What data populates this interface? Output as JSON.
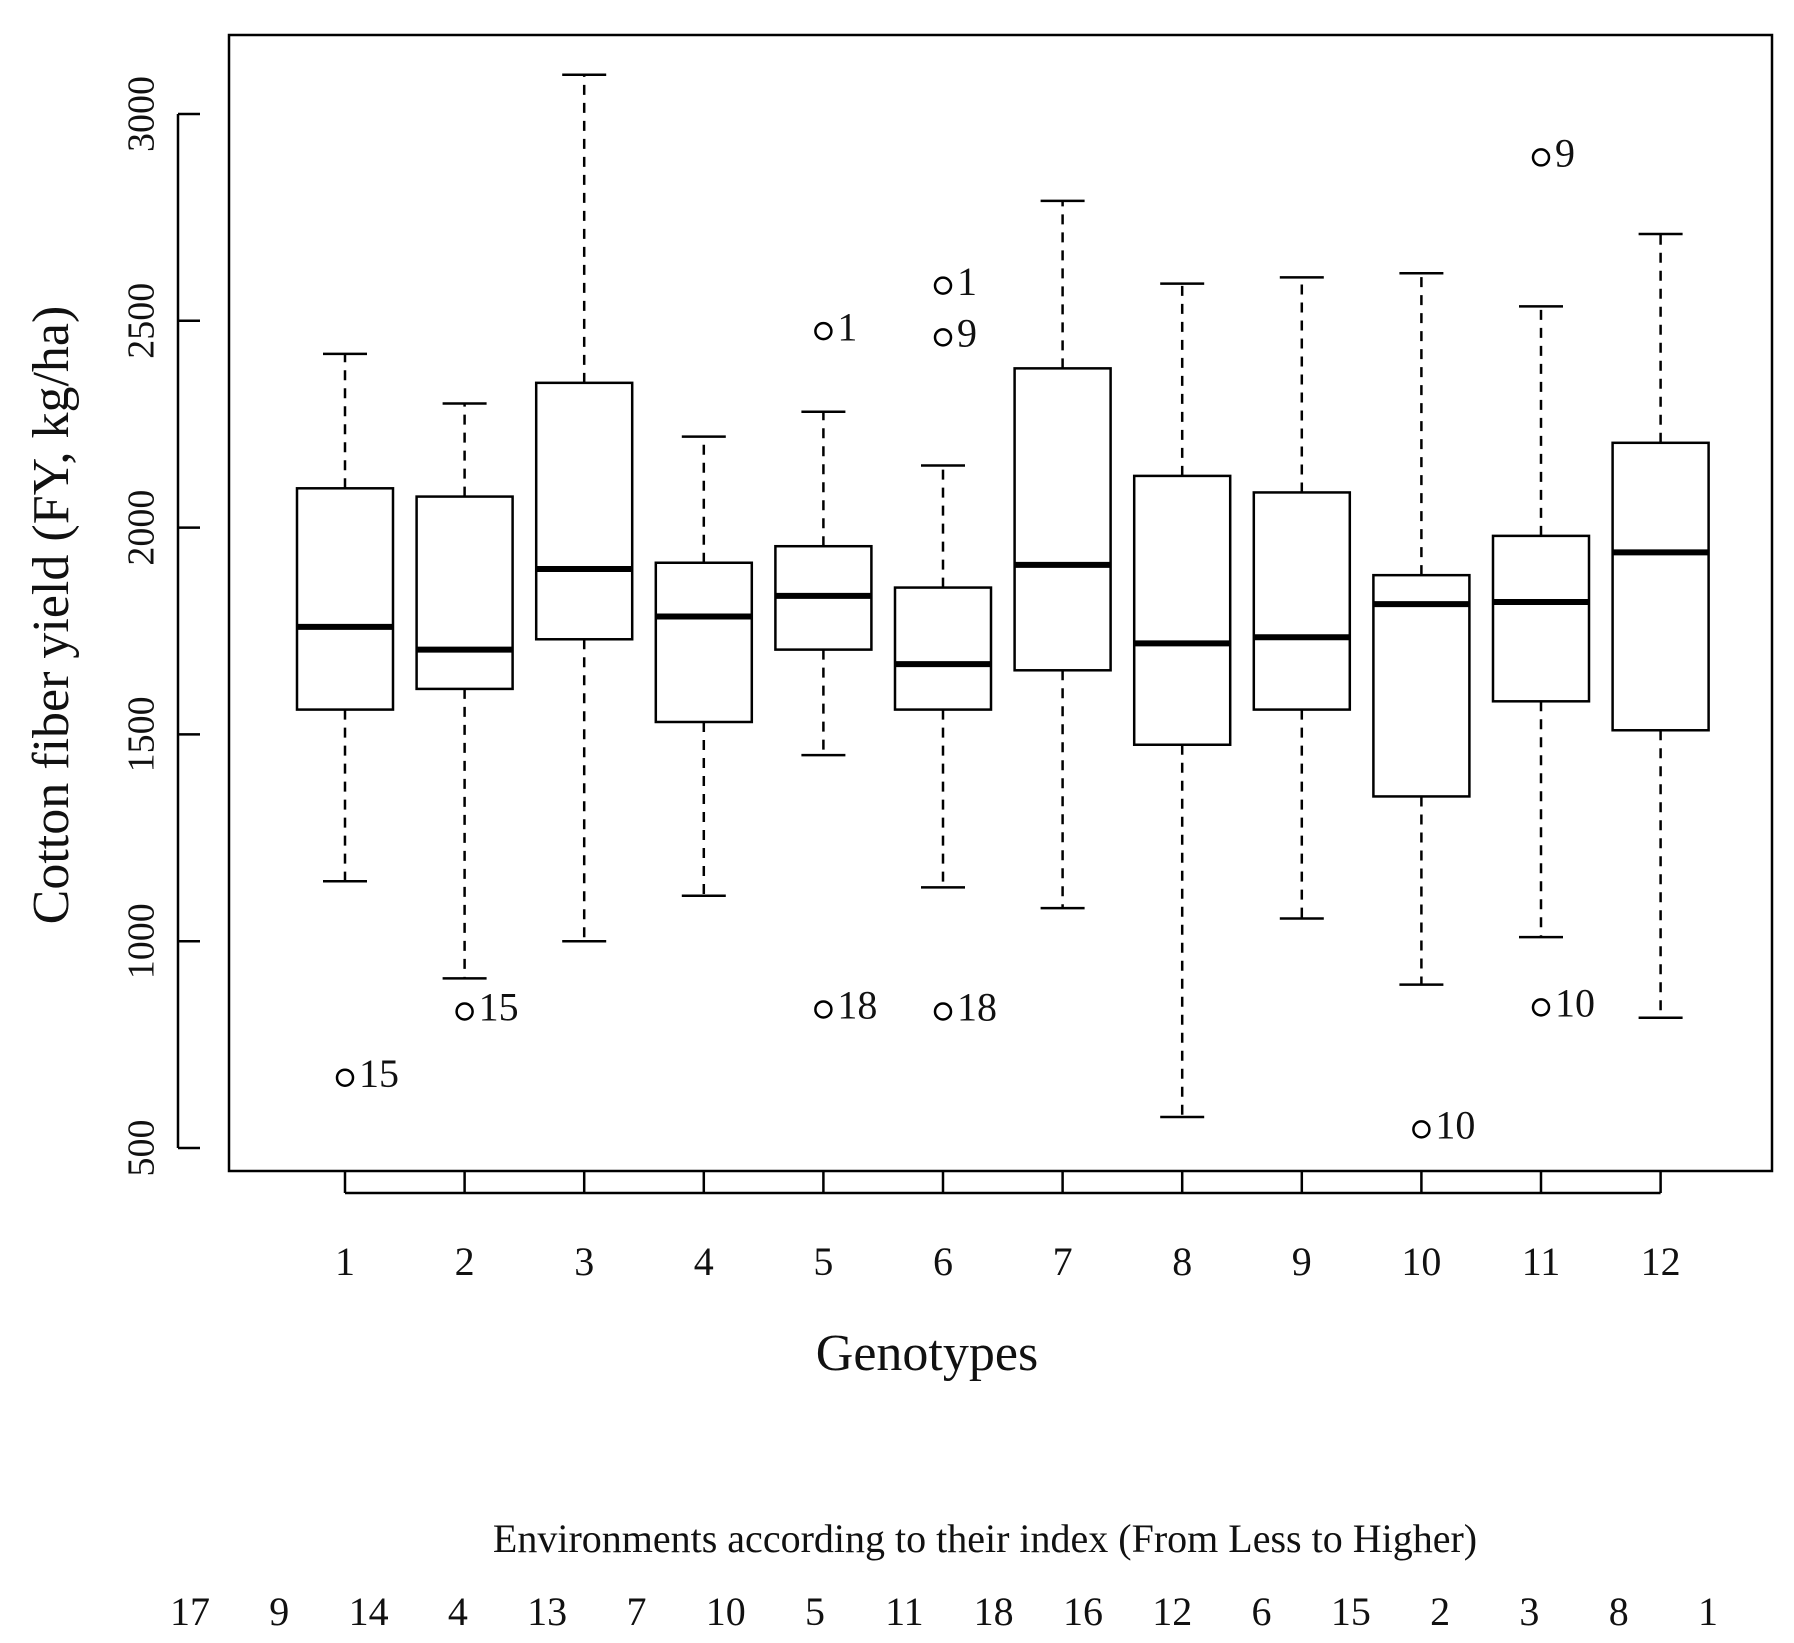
{
  "chart_data": {
    "type": "boxplot",
    "title": "",
    "xlabel": "Genotypes",
    "ylabel": "Cotton fiber yield (FY, kg/ha)",
    "ylim": [
      440,
      3190
    ],
    "yticks": [
      500,
      1000,
      1500,
      2000,
      2500,
      3000
    ],
    "categories": [
      "1",
      "2",
      "3",
      "4",
      "5",
      "6",
      "7",
      "8",
      "9",
      "10",
      "11",
      "12"
    ],
    "boxes": [
      {
        "genotype": "1",
        "whisker_low": 1145,
        "q1": 1560,
        "median": 1760,
        "q3": 2095,
        "whisker_high": 2420,
        "outliers": [
          {
            "value": 670,
            "label": "15"
          }
        ]
      },
      {
        "genotype": "2",
        "whisker_low": 910,
        "q1": 1610,
        "median": 1705,
        "q3": 2075,
        "whisker_high": 2300,
        "outliers": [
          {
            "value": 830,
            "label": "15"
          }
        ]
      },
      {
        "genotype": "3",
        "whisker_low": 1000,
        "q1": 1730,
        "median": 1900,
        "q3": 2350,
        "whisker_high": 3095,
        "outliers": []
      },
      {
        "genotype": "4",
        "whisker_low": 1110,
        "q1": 1530,
        "median": 1785,
        "q3": 1915,
        "whisker_high": 2220,
        "outliers": []
      },
      {
        "genotype": "5",
        "whisker_low": 1450,
        "q1": 1705,
        "median": 1835,
        "q3": 1955,
        "whisker_high": 2280,
        "outliers": [
          {
            "value": 2475,
            "label": "1"
          },
          {
            "value": 835,
            "label": "18"
          }
        ]
      },
      {
        "genotype": "6",
        "whisker_low": 1130,
        "q1": 1560,
        "median": 1670,
        "q3": 1855,
        "whisker_high": 2150,
        "outliers": [
          {
            "value": 2585,
            "label": "1"
          },
          {
            "value": 2460,
            "label": "9"
          },
          {
            "value": 830,
            "label": "18"
          }
        ]
      },
      {
        "genotype": "7",
        "whisker_low": 1080,
        "q1": 1655,
        "median": 1910,
        "q3": 2385,
        "whisker_high": 2790,
        "outliers": []
      },
      {
        "genotype": "8",
        "whisker_low": 575,
        "q1": 1475,
        "median": 1720,
        "q3": 2125,
        "whisker_high": 2590,
        "outliers": []
      },
      {
        "genotype": "9",
        "whisker_low": 1055,
        "q1": 1560,
        "median": 1735,
        "q3": 2085,
        "whisker_high": 2605,
        "outliers": []
      },
      {
        "genotype": "10",
        "whisker_low": 895,
        "q1": 1350,
        "median": 1815,
        "q3": 1885,
        "whisker_high": 2615,
        "outliers": [
          {
            "value": 545,
            "label": "10"
          }
        ]
      },
      {
        "genotype": "11",
        "whisker_low": 1010,
        "q1": 1580,
        "median": 1820,
        "q3": 1980,
        "whisker_high": 2535,
        "outliers": [
          {
            "value": 2895,
            "label": "9"
          },
          {
            "value": 840,
            "label": "10"
          }
        ]
      },
      {
        "genotype": "12",
        "whisker_low": 815,
        "q1": 1510,
        "median": 1940,
        "q3": 2205,
        "whisker_high": 2710,
        "outliers": []
      }
    ],
    "environments": {
      "title": "Environments according to their index (From Less to Higher)",
      "order": [
        "17",
        "9",
        "14",
        "4",
        "13",
        "7",
        "10",
        "5",
        "11",
        "18",
        "16",
        "12",
        "6",
        "15",
        "2",
        "3",
        "8",
        "1"
      ]
    }
  }
}
